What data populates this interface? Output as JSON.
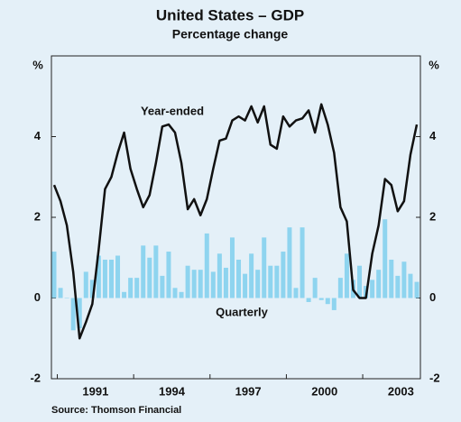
{
  "chart_data": {
    "type": "bar_line",
    "title": "United States – GDP",
    "subtitle": "Percentage change",
    "y_unit": "%",
    "y2_unit": "%",
    "source": "Source: Thomson Financial",
    "annotations": [
      "Year-ended",
      "Quarterly"
    ],
    "categories": [
      null,
      null,
      null,
      null,
      null,
      null,
      "1991",
      null,
      null,
      null,
      null,
      null,
      null,
      null,
      null,
      null,
      null,
      null,
      "1994",
      null,
      null,
      null,
      null,
      null,
      null,
      null,
      null,
      null,
      null,
      null,
      "1997",
      null,
      null,
      null,
      null,
      null,
      null,
      null,
      null,
      null,
      null,
      null,
      "2000",
      null,
      null,
      null,
      null,
      null,
      null,
      null,
      null,
      null,
      null,
      null,
      "2003",
      null,
      null,
      null
    ],
    "series": [
      {
        "name": "Quarterly",
        "kind": "bar",
        "color": "#8ed4ef",
        "values": [
          1.15,
          0.25,
          0.0,
          -0.8,
          -0.75,
          0.65,
          0.45,
          1.05,
          0.95,
          0.95,
          1.05,
          0.15,
          0.5,
          0.5,
          1.3,
          1.0,
          1.3,
          0.55,
          1.15,
          0.25,
          0.15,
          0.8,
          0.7,
          0.7,
          1.6,
          0.65,
          1.1,
          0.75,
          1.5,
          0.95,
          0.6,
          1.1,
          0.7,
          1.5,
          0.8,
          0.8,
          1.15,
          1.75,
          0.25,
          1.75,
          -0.1,
          0.5,
          -0.05,
          -0.15,
          -0.3,
          0.5,
          1.1,
          0.45,
          0.8,
          0.3,
          0.45,
          0.7,
          1.95,
          0.95,
          0.55,
          0.9,
          0.6,
          0.4
        ]
      },
      {
        "name": "Year-ended",
        "kind": "line",
        "color": "#111111",
        "values": [
          2.8,
          2.4,
          1.8,
          0.65,
          -1.0,
          -0.6,
          -0.15,
          1.2,
          2.7,
          3.0,
          3.6,
          4.1,
          3.2,
          2.7,
          2.25,
          2.55,
          3.35,
          4.25,
          4.3,
          4.1,
          3.35,
          2.2,
          2.45,
          2.05,
          2.45,
          3.2,
          3.9,
          3.95,
          4.4,
          4.5,
          4.4,
          4.75,
          4.35,
          4.75,
          3.8,
          3.7,
          4.5,
          4.25,
          4.4,
          4.45,
          4.65,
          4.1,
          4.8,
          4.3,
          3.6,
          2.25,
          1.9,
          0.2,
          0.0,
          0.0,
          1.1,
          1.8,
          2.95,
          2.8,
          2.15,
          2.4,
          3.55,
          4.3
        ]
      }
    ],
    "ylim": [
      -2,
      6
    ],
    "yticks": [
      -2,
      0,
      2,
      4
    ],
    "y2lim": [
      -2,
      6
    ],
    "y2ticks": [
      -2,
      0,
      2,
      4
    ]
  }
}
